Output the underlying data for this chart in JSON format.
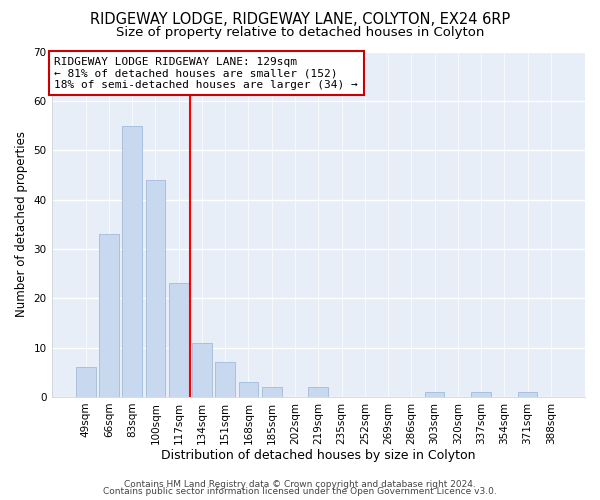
{
  "title": "RIDGEWAY LODGE, RIDGEWAY LANE, COLYTON, EX24 6RP",
  "subtitle": "Size of property relative to detached houses in Colyton",
  "xlabel": "Distribution of detached houses by size in Colyton",
  "ylabel": "Number of detached properties",
  "bar_labels": [
    "49sqm",
    "66sqm",
    "83sqm",
    "100sqm",
    "117sqm",
    "134sqm",
    "151sqm",
    "168sqm",
    "185sqm",
    "202sqm",
    "219sqm",
    "235sqm",
    "252sqm",
    "269sqm",
    "286sqm",
    "303sqm",
    "320sqm",
    "337sqm",
    "354sqm",
    "371sqm",
    "388sqm"
  ],
  "bar_values": [
    6,
    33,
    55,
    44,
    23,
    11,
    7,
    3,
    2,
    0,
    2,
    0,
    0,
    0,
    0,
    1,
    0,
    1,
    0,
    1,
    0
  ],
  "bar_color": "#c8d8ee",
  "bar_edge_color": "#a8c0dc",
  "vline_x": 4.5,
  "vline_color": "red",
  "annotation_title": "RIDGEWAY LODGE RIDGEWAY LANE: 129sqm",
  "annotation_line1": "← 81% of detached houses are smaller (152)",
  "annotation_line2": "18% of semi-detached houses are larger (34) →",
  "annotation_box_color": "white",
  "annotation_box_edge": "#cc0000",
  "ylim": [
    0,
    70
  ],
  "yticks": [
    0,
    10,
    20,
    30,
    40,
    50,
    60,
    70
  ],
  "footer1": "Contains HM Land Registry data © Crown copyright and database right 2024.",
  "footer2": "Contains public sector information licensed under the Open Government Licence v3.0.",
  "background_color": "#ffffff",
  "plot_background": "#e8eef8",
  "grid_color": "white",
  "title_fontsize": 10.5,
  "subtitle_fontsize": 9.5,
  "xlabel_fontsize": 9,
  "ylabel_fontsize": 8.5,
  "tick_fontsize": 7.5,
  "annotation_fontsize": 8,
  "footer_fontsize": 6.5
}
